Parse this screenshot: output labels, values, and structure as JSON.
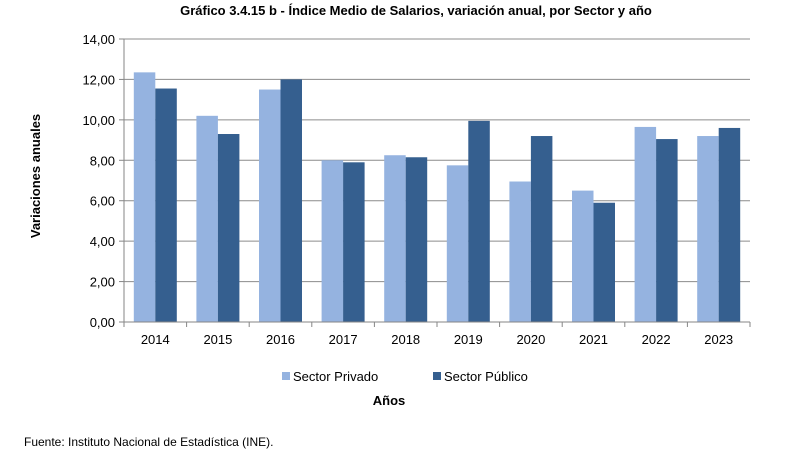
{
  "chart_data": {
    "type": "bar",
    "title": "Gráfico 3.4.15 b - Índice Medio de Salarios, variación anual, por Sector y año",
    "xlabel": "Años",
    "ylabel": "Variaciones anuales",
    "categories": [
      "2014",
      "2015",
      "2016",
      "2017",
      "2018",
      "2019",
      "2020",
      "2021",
      "2022",
      "2023"
    ],
    "series": [
      {
        "name": "Sector Privado",
        "color": "#95b3e0",
        "values": [
          12.35,
          10.2,
          11.5,
          8.0,
          8.25,
          7.75,
          6.95,
          6.5,
          9.65,
          9.2
        ]
      },
      {
        "name": "Sector Público",
        "color": "#355f8f",
        "values": [
          11.55,
          9.3,
          12.0,
          7.9,
          8.15,
          9.95,
          9.2,
          5.9,
          9.05,
          9.6
        ]
      }
    ],
    "ylim": [
      0,
      14
    ],
    "yticks": [
      "0,00",
      "2,00",
      "4,00",
      "6,00",
      "8,00",
      "10,00",
      "12,00",
      "14,00"
    ],
    "grid": true,
    "legend_position": "bottom"
  },
  "source_note": "Fuente: Instituto Nacional de Estadística (INE)."
}
